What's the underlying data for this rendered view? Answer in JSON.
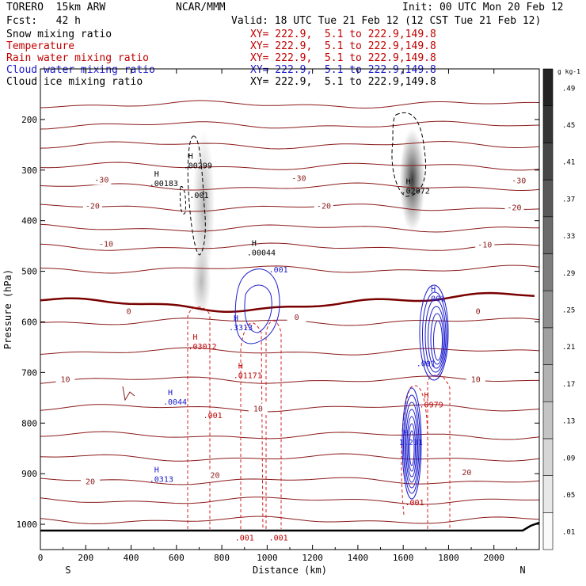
{
  "header": {
    "model": "TORERO  15km ARW",
    "center": "NCAR/MMM",
    "init": "Init: 00 UTC Mon 20 Feb 12",
    "fcst": "Fcst:   42 h",
    "valid": "Valid: 18 UTC Tue 21 Feb 12 (12 CST Tue 21 Feb 12)"
  },
  "legend": [
    {
      "label": "Snow mixing ratio",
      "xy": "XY= 222.9,  5.1 to 222.9,149.8",
      "color": "#000000"
    },
    {
      "label": "Temperature",
      "xy": "XY= 222.9,  5.1 to 222.9,149.8",
      "color": "#c00000"
    },
    {
      "label": "Rain water mixing ratio",
      "xy": "XY= 222.9,  5.1 to 222.9,149.8",
      "color": "#c00000"
    },
    {
      "label": "Cloud water mixing ratio",
      "xy": "XY= 222.9,  5.1 to 222.9,149.8",
      "color": "#1a1acc"
    },
    {
      "label": "Cloud ice mixing ratio",
      "xy": "XY= 222.9,  5.1 to 222.9,149.8",
      "color": "#000000"
    }
  ],
  "chart_data": {
    "type": "cross-section contour",
    "xlabel": "Distance (km)",
    "ylabel": "Pressure (hPa)",
    "xlim": [
      0,
      2200
    ],
    "ylim": [
      1050,
      100
    ],
    "xticks": [
      0,
      200,
      400,
      600,
      800,
      1000,
      1200,
      1400,
      1600,
      1800,
      2000
    ],
    "yticks": [
      200,
      300,
      400,
      500,
      600,
      700,
      800,
      900,
      1000
    ],
    "endpoints": {
      "left": "S",
      "right": "N"
    },
    "colorbar": {
      "unit": "g kg-1",
      "levels": [
        0.01,
        0.05,
        0.09,
        0.13,
        0.17,
        0.21,
        0.25,
        0.29,
        0.33,
        0.37,
        0.41,
        0.45,
        0.49
      ]
    },
    "temperature_labels": [
      {
        "text": "-30",
        "x": 270,
        "p": 318
      },
      {
        "text": "-30",
        "x": 1140,
        "p": 315
      },
      {
        "text": "-30",
        "x": 2110,
        "p": 320
      },
      {
        "text": "-20",
        "x": 230,
        "p": 370
      },
      {
        "text": "-20",
        "x": 1250,
        "p": 370
      },
      {
        "text": "-20",
        "x": 2090,
        "p": 373
      },
      {
        "text": "-10",
        "x": 290,
        "p": 445
      },
      {
        "text": "-10",
        "x": 1960,
        "p": 447
      },
      {
        "text": "0",
        "x": 390,
        "p": 578
      },
      {
        "text": "0",
        "x": 1130,
        "p": 590
      },
      {
        "text": "0",
        "x": 1930,
        "p": 578
      },
      {
        "text": "10",
        "x": 110,
        "p": 713
      },
      {
        "text": "10",
        "x": 960,
        "p": 771
      },
      {
        "text": "10",
        "x": 1920,
        "p": 713
      },
      {
        "text": "20",
        "x": 220,
        "p": 915
      },
      {
        "text": "20",
        "x": 770,
        "p": 902
      },
      {
        "text": "20",
        "x": 1880,
        "p": 897
      }
    ],
    "max_labels": [
      {
        "value": ".00299",
        "x": 680,
        "p": 290,
        "color": "#000000"
      },
      {
        "value": ".00183",
        "x": 530,
        "p": 325,
        "color": "#000000"
      },
      {
        "value": ".02072",
        "x": 1640,
        "p": 340,
        "color": "#000000"
      },
      {
        "value": ".00044",
        "x": 960,
        "p": 462,
        "color": "#000000"
      },
      {
        "value": ".3313",
        "x": 880,
        "p": 610,
        "color": "#1a1acc"
      },
      {
        "value": ".03012",
        "x": 700,
        "p": 648,
        "color": "#c00000"
      },
      {
        "value": ".01171",
        "x": 900,
        "p": 705,
        "color": "#c00000"
      },
      {
        "value": ".0044",
        "x": 590,
        "p": 757,
        "color": "#1a1acc"
      },
      {
        "value": ".0979",
        "x": 1720,
        "p": 763,
        "color": "#c00000"
      },
      {
        "value": "1.231",
        "x": 1630,
        "p": 837,
        "color": "#1a1acc"
      },
      {
        "value": ".0313",
        "x": 530,
        "p": 910,
        "color": "#1a1acc"
      },
      {
        "value": ".001",
        "x": 1750,
        "p": 553,
        "color": "#1a1acc"
      }
    ],
    "min_contour_labels": [
      {
        "value": ".001",
        "x": 700,
        "p": 355,
        "color": "#000000"
      },
      {
        "value": ".001",
        "x": 1050,
        "p": 502,
        "color": "#1a1acc"
      },
      {
        "value": ".001",
        "x": 1700,
        "p": 688,
        "color": "#1a1acc"
      },
      {
        "value": ".001",
        "x": 760,
        "p": 790,
        "color": "#c00000"
      },
      {
        "value": ".001",
        "x": 1650,
        "p": 962,
        "color": "#c00000"
      },
      {
        "value": ".001",
        "x": 900,
        "p": 1032,
        "color": "#c00000"
      },
      {
        "value": ".001",
        "x": 1050,
        "p": 1032,
        "color": "#c00000"
      }
    ]
  }
}
